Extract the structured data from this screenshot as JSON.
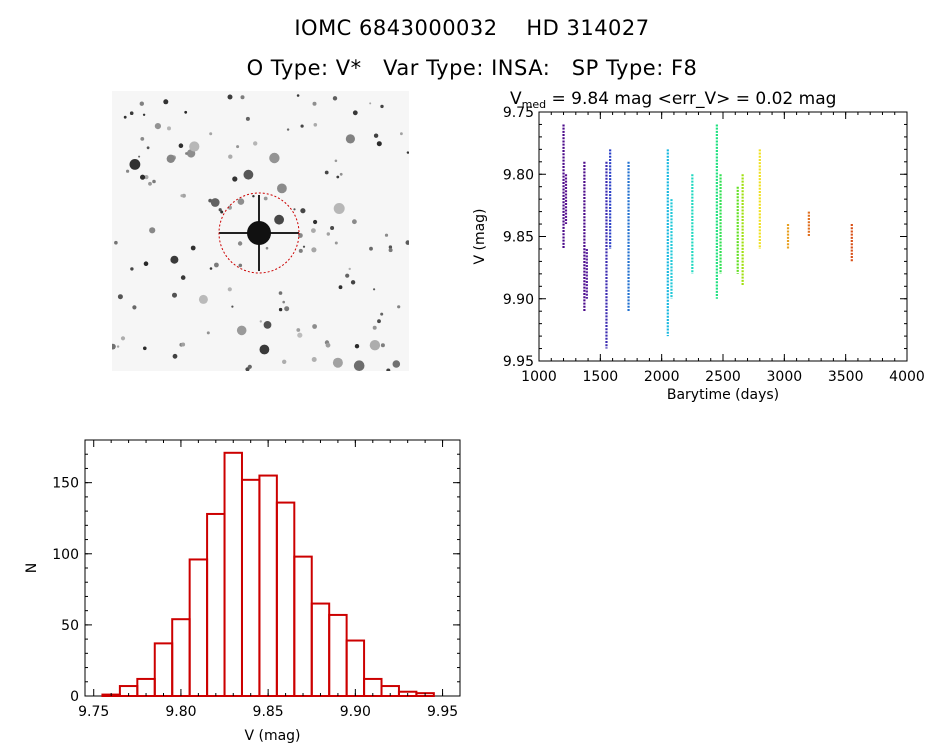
{
  "header": {
    "title_line1": "IOMC 6843000032    HD 314027",
    "title_line2": "O Type: V*   Var Type: INSA:   SP Type: F8"
  },
  "image": {
    "description_label": "star field thumbnail",
    "circle_color": "#cc0000"
  },
  "chart_data": [
    {
      "type": "scatter",
      "title_prefix": "V",
      "title_sub": "med",
      "title_rest": " = 9.84 mag <err_V> = 0.02 mag",
      "xlabel": "Barytime (days)",
      "ylabel": "V (mag)",
      "xlim": [
        1000,
        4000
      ],
      "ylim": [
        9.95,
        9.75
      ],
      "xticks": [
        "1000",
        "1500",
        "2000",
        "2500",
        "3000",
        "3500",
        "4000"
      ],
      "yticks": [
        "9.75",
        "9.80",
        "9.85",
        "9.90",
        "9.95"
      ],
      "grid": false,
      "series": [
        {
          "color": "#4b0a8a",
          "x": 1200,
          "values": [
            9.76,
            9.86
          ]
        },
        {
          "color": "#5a1090",
          "x": 1220,
          "values": [
            9.8,
            9.84
          ]
        },
        {
          "color": "#4b0a8a",
          "x": 1370,
          "values": [
            9.79,
            9.91
          ]
        },
        {
          "color": "#5a20a0",
          "x": 1390,
          "values": [
            9.86,
            9.9
          ]
        },
        {
          "color": "#3a2ab0",
          "x": 1550,
          "values": [
            9.79,
            9.94
          ]
        },
        {
          "color": "#2a40c8",
          "x": 1580,
          "values": [
            9.78,
            9.86
          ]
        },
        {
          "color": "#2070d0",
          "x": 1730,
          "values": [
            9.79,
            9.91
          ]
        },
        {
          "color": "#18b8e0",
          "x": 2050,
          "values": [
            9.78,
            9.93
          ]
        },
        {
          "color": "#20c8d8",
          "x": 2080,
          "values": [
            9.82,
            9.9
          ]
        },
        {
          "color": "#20d8c0",
          "x": 2250,
          "values": [
            9.8,
            9.88
          ]
        },
        {
          "color": "#20e080",
          "x": 2450,
          "values": [
            9.76,
            9.9
          ]
        },
        {
          "color": "#30e050",
          "x": 2480,
          "values": [
            9.8,
            9.88
          ]
        },
        {
          "color": "#60e020",
          "x": 2620,
          "values": [
            9.81,
            9.88
          ]
        },
        {
          "color": "#a0e010",
          "x": 2660,
          "values": [
            9.8,
            9.89
          ]
        },
        {
          "color": "#f0e020",
          "x": 2800,
          "values": [
            9.78,
            9.86
          ]
        },
        {
          "color": "#e8a020",
          "x": 3030,
          "values": [
            9.84,
            9.86
          ]
        },
        {
          "color": "#e07020",
          "x": 3200,
          "values": [
            9.83,
            9.85
          ]
        },
        {
          "color": "#d85018",
          "x": 3550,
          "values": [
            9.84,
            9.87
          ]
        }
      ]
    },
    {
      "type": "bar",
      "title": "",
      "xlabel": "V (mag)",
      "ylabel": "N",
      "xlim": [
        9.745,
        9.96
      ],
      "ylim": [
        0,
        180
      ],
      "xticks": [
        "9.75",
        "9.80",
        "9.85",
        "9.90",
        "9.95"
      ],
      "yticks": [
        "0",
        "50",
        "100",
        "150"
      ],
      "bar_color": "#cc0000",
      "bin_width": 0.01,
      "bin_starts": [
        9.755,
        9.765,
        9.775,
        9.785,
        9.795,
        9.805,
        9.815,
        9.825,
        9.835,
        9.845,
        9.855,
        9.865,
        9.875,
        9.885,
        9.895,
        9.905,
        9.915,
        9.925,
        9.935
      ],
      "values": [
        1,
        7,
        12,
        37,
        54,
        96,
        128,
        171,
        152,
        155,
        136,
        98,
        65,
        57,
        39,
        12,
        7,
        3,
        2
      ]
    }
  ]
}
